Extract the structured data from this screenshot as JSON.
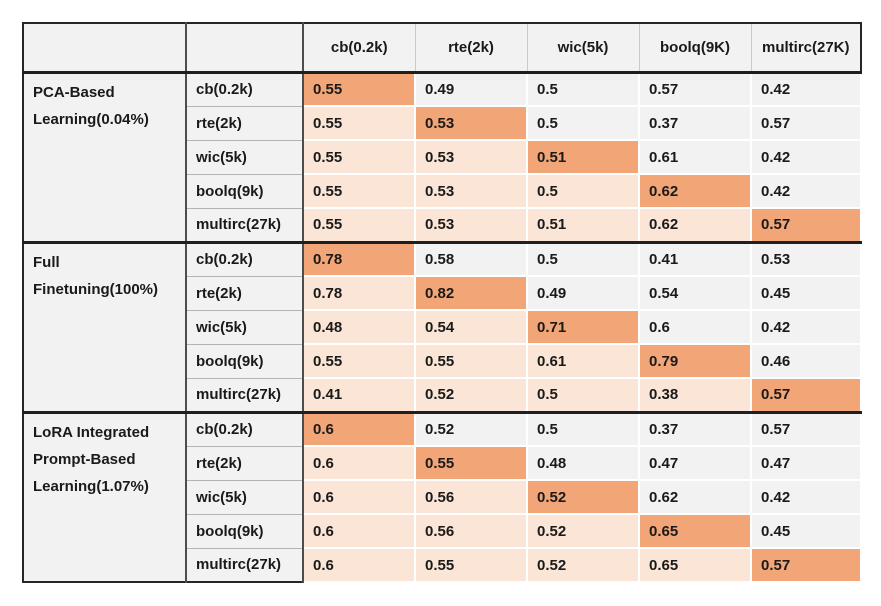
{
  "figure": {
    "description_colors": {
      "diagonal_highlight": "#F2A577",
      "below_diagonal": "#FBE5D6",
      "above_diagonal": "#F2F2F2",
      "header_background": "#F2F2F2",
      "thick_border": "#1F1F1F",
      "label_separator": "#4D4D4D",
      "text": "#1A1A1A"
    }
  },
  "chart_data": {
    "type": "table",
    "column_headers": [
      "cb(0.2k)",
      "rte(2k)",
      "wic(5k)",
      "boolq(9K)",
      "multirc(27K)"
    ],
    "highlight_rule": {
      "diagonal": "dark-orange #F2A577",
      "below_left_of_diagonal": "light-peach #FBE5D6",
      "above_right_of_diagonal": "plain-grey #F2F2F2"
    },
    "row_groups": [
      {
        "label": "PCA-Based Learning(0.04%)",
        "rows": [
          {
            "label": "cb(0.2k)",
            "values": [
              "0.55",
              "0.49",
              "0.5",
              "0.57",
              "0.42"
            ]
          },
          {
            "label": "rte(2k)",
            "values": [
              "0.55",
              "0.53",
              "0.5",
              "0.37",
              "0.57"
            ]
          },
          {
            "label": "wic(5k)",
            "values": [
              "0.55",
              "0.53",
              "0.51",
              "0.61",
              "0.42"
            ]
          },
          {
            "label": "boolq(9k)",
            "values": [
              "0.55",
              "0.53",
              "0.5",
              "0.62",
              "0.42"
            ]
          },
          {
            "label": "multirc(27k)",
            "values": [
              "0.55",
              "0.53",
              "0.51",
              "0.62",
              "0.57"
            ]
          }
        ]
      },
      {
        "label": "Full Finetuning(100%)",
        "rows": [
          {
            "label": "cb(0.2k)",
            "values": [
              "0.78",
              "0.58",
              "0.5",
              "0.41",
              "0.53"
            ]
          },
          {
            "label": "rte(2k)",
            "values": [
              "0.78",
              "0.82",
              "0.49",
              "0.54",
              "0.45"
            ]
          },
          {
            "label": "wic(5k)",
            "values": [
              "0.48",
              "0.54",
              "0.71",
              "0.6",
              "0.42"
            ]
          },
          {
            "label": "boolq(9k)",
            "values": [
              "0.55",
              "0.55",
              "0.61",
              "0.79",
              "0.46"
            ]
          },
          {
            "label": "multirc(27k)",
            "values": [
              "0.41",
              "0.52",
              "0.5",
              "0.38",
              "0.57"
            ]
          }
        ]
      },
      {
        "label": "LoRA Integrated Prompt-Based Learning(1.07%)",
        "rows": [
          {
            "label": "cb(0.2k)",
            "values": [
              "0.6",
              "0.52",
              "0.5",
              "0.37",
              "0.57"
            ]
          },
          {
            "label": "rte(2k)",
            "values": [
              "0.6",
              "0.55",
              "0.48",
              "0.47",
              "0.47"
            ]
          },
          {
            "label": "wic(5k)",
            "values": [
              "0.6",
              "0.56",
              "0.52",
              "0.62",
              "0.42"
            ]
          },
          {
            "label": "boolq(9k)",
            "values": [
              "0.6",
              "0.56",
              "0.52",
              "0.65",
              "0.45"
            ]
          },
          {
            "label": "multirc(27k)",
            "values": [
              "0.6",
              "0.55",
              "0.52",
              "0.65",
              "0.57"
            ]
          }
        ]
      }
    ]
  }
}
